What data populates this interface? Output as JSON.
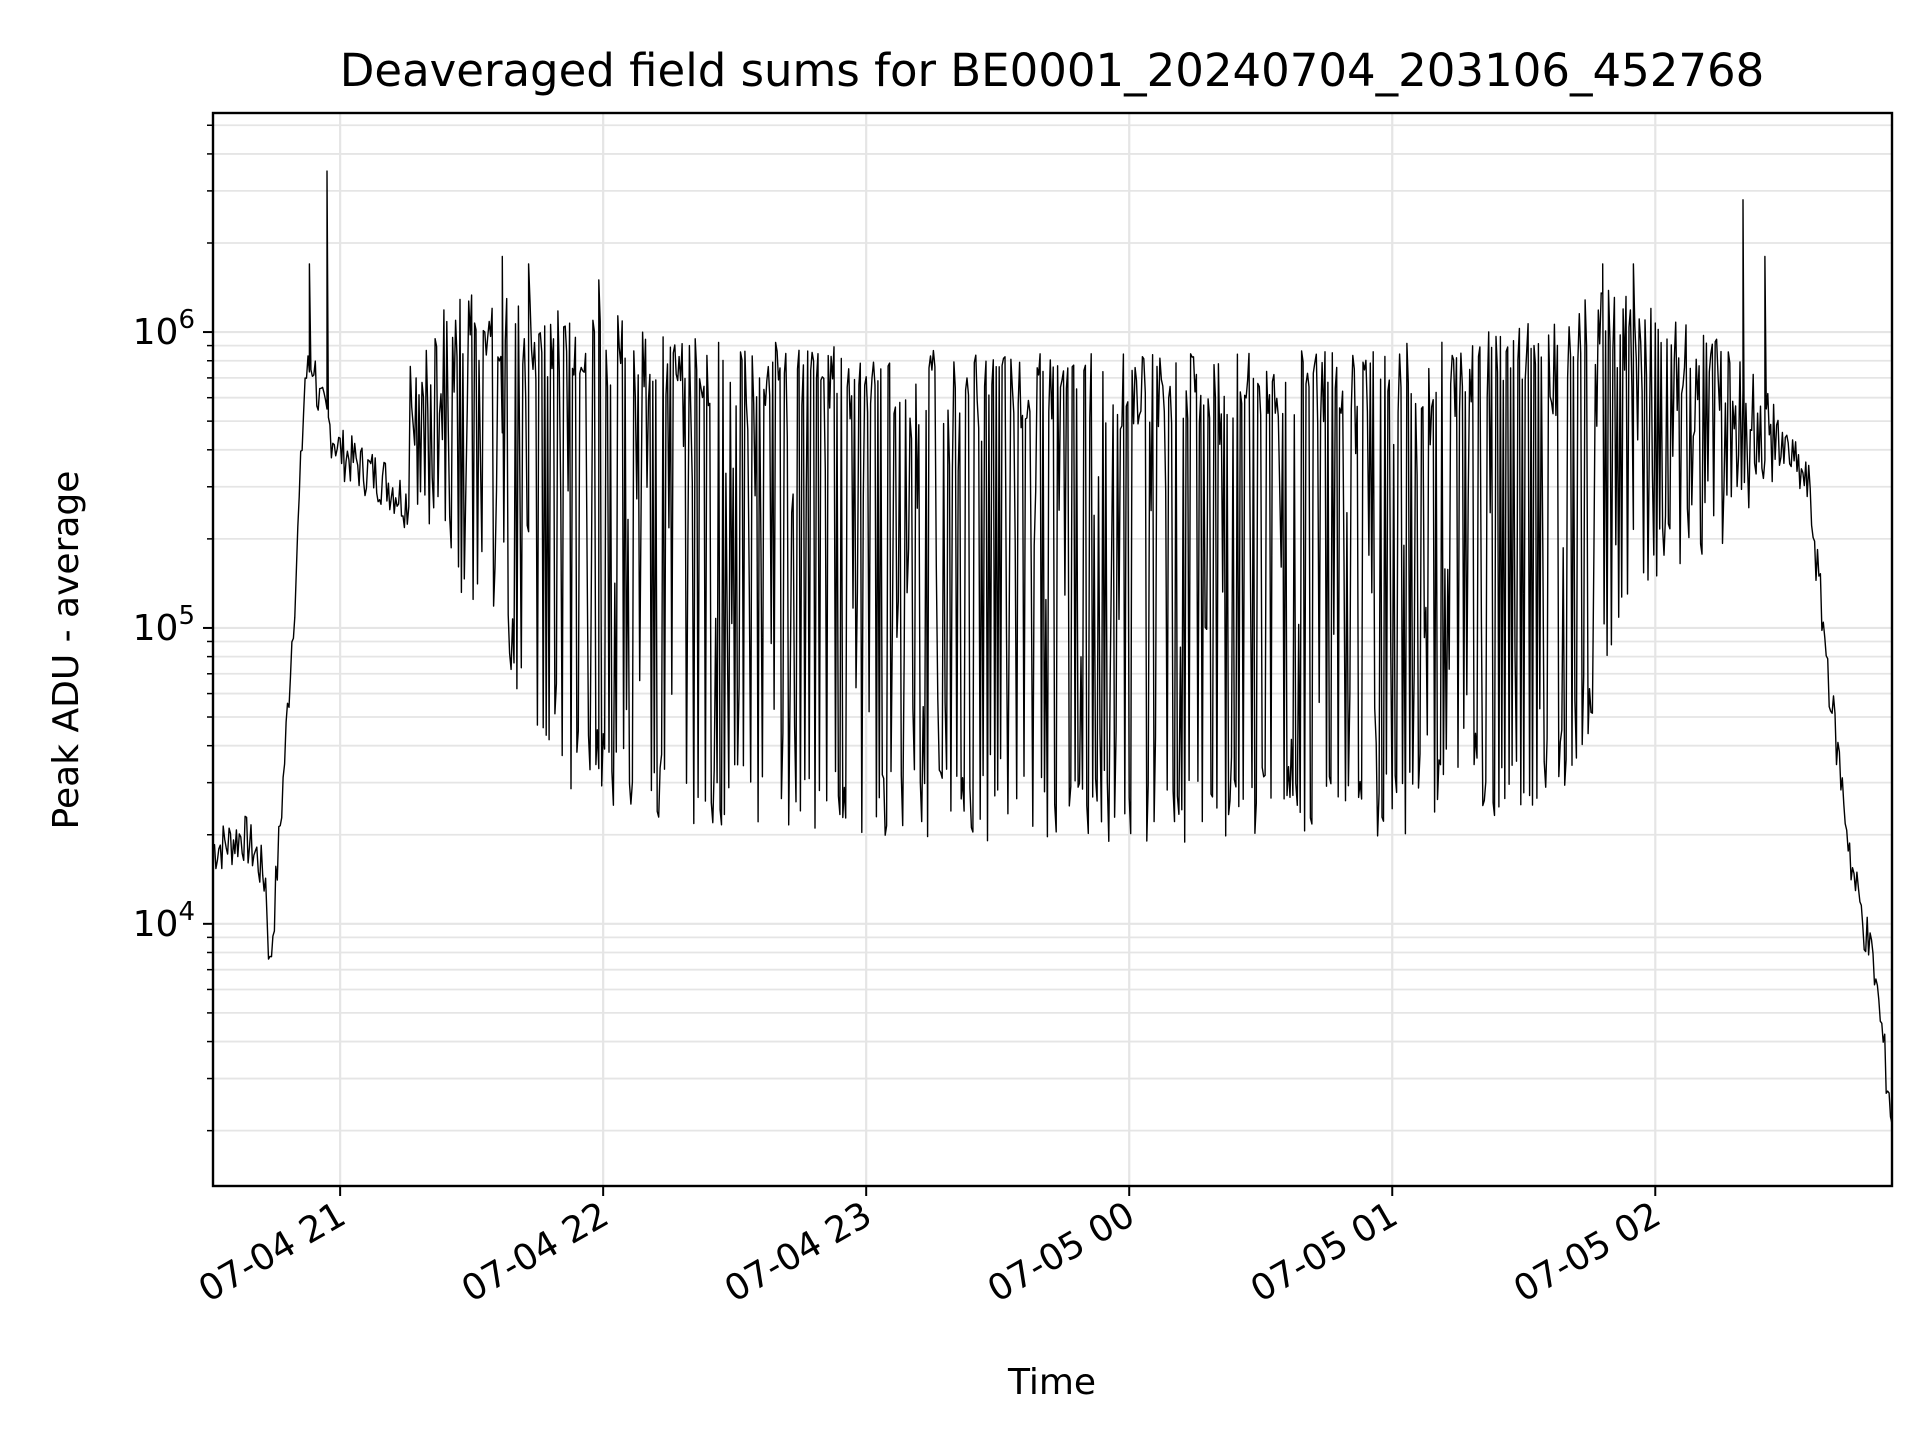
{
  "chart_data": {
    "type": "line",
    "title": "Deaveraged field sums for BE0001_20240704_203106_452768",
    "xlabel": "Time",
    "ylabel": "Peak ADU - average",
    "yscale": "log",
    "ylim": [
      1300,
      5500000
    ],
    "xlim": [
      "2024-07-04 20:31",
      "2024-07-05 02:54"
    ],
    "grid": true,
    "line_color": "#000000",
    "grid_color": "#e5e5e5",
    "x_ticks": [
      {
        "label": "07-04 21",
        "value": "2024-07-04 21:00"
      },
      {
        "label": "07-04 22",
        "value": "2024-07-04 22:00"
      },
      {
        "label": "07-04 23",
        "value": "2024-07-04 23:00"
      },
      {
        "label": "07-05 00",
        "value": "2024-07-05 00:00"
      },
      {
        "label": "07-05 01",
        "value": "2024-07-05 01:00"
      },
      {
        "label": "07-05 02",
        "value": "2024-07-05 02:00"
      }
    ],
    "y_ticks": [
      {
        "base": "10",
        "exp": "4",
        "value": 10000
      },
      {
        "base": "10",
        "exp": "5",
        "value": 100000
      },
      {
        "base": "10",
        "exp": "6",
        "value": 1000000
      }
    ],
    "series": [
      {
        "x": [
          "2024-07-04 20:31",
          "2024-07-04 20:35",
          "2024-07-04 20:38",
          "2024-07-04 20:41",
          "2024-07-04 20:43",
          "2024-07-04 20:44",
          "2024-07-04 20:47",
          "2024-07-04 20:50",
          "2024-07-04 20:52",
          "2024-07-04 20:54",
          "2024-07-04 20:55",
          "2024-07-04 20:57",
          "2024-07-04 21:00",
          "2024-07-04 21:05",
          "2024-07-04 21:10",
          "2024-07-04 21:15",
          "2024-07-04 21:20",
          "2024-07-04 21:26",
          "2024-07-04 21:30",
          "2024-07-04 21:35",
          "2024-07-04 21:40",
          "2024-07-04 21:45",
          "2024-07-04 21:50",
          "2024-07-04 21:55",
          "2024-07-04 22:00",
          "2024-07-04 22:10",
          "2024-07-04 22:20",
          "2024-07-04 22:30",
          "2024-07-04 22:40",
          "2024-07-04 22:50",
          "2024-07-04 23:00",
          "2024-07-04 23:15",
          "2024-07-04 23:30",
          "2024-07-04 23:45",
          "2024-07-05 00:00",
          "2024-07-05 00:15",
          "2024-07-05 00:30",
          "2024-07-05 00:45",
          "2024-07-05 01:00",
          "2024-07-05 01:15",
          "2024-07-05 01:30",
          "2024-07-05 01:40",
          "2024-07-05 01:50",
          "2024-07-05 02:00",
          "2024-07-05 02:10",
          "2024-07-05 02:20",
          "2024-07-05 02:30",
          "2024-07-05 02:35",
          "2024-07-05 02:40",
          "2024-07-05 02:45",
          "2024-07-05 02:50",
          "2024-07-05 02:54"
        ],
        "y": [
          18000,
          19000,
          20000,
          17000,
          14000,
          7000,
          30000,
          160000,
          700000,
          800000,
          600000,
          500000,
          400000,
          350000,
          320000,
          270000,
          250000,
          160000,
          140000,
          120000,
          70000,
          40000,
          35000,
          32000,
          30000,
          27000,
          25000,
          24000,
          24000,
          23000,
          23000,
          23000,
          22000,
          22000,
          22000,
          22000,
          22000,
          22000,
          23000,
          25000,
          28000,
          35000,
          80000,
          160000,
          200000,
          250000,
          400000,
          300000,
          60000,
          15000,
          7000,
          2200
        ],
        "spikes": [
          {
            "x": "2024-07-04 20:57",
            "y": 3500000
          },
          {
            "x": "2024-07-04 20:53",
            "y": 1700000
          },
          {
            "x": "2024-07-04 21:37",
            "y": 1800000
          },
          {
            "x": "2024-07-04 21:43",
            "y": 1700000
          },
          {
            "x": "2024-07-04 21:59",
            "y": 1500000
          },
          {
            "x": "2024-07-05 01:48",
            "y": 1700000
          },
          {
            "x": "2024-07-05 01:55",
            "y": 1700000
          },
          {
            "x": "2024-07-05 02:20",
            "y": 2800000
          },
          {
            "x": "2024-07-05 02:25",
            "y": 1800000
          }
        ],
        "upper_envelope": [
          {
            "x": "2024-07-04 21:16",
            "y": 1000000
          },
          {
            "x": "2024-07-04 21:30",
            "y": 1400000
          },
          {
            "x": "2024-07-04 21:45",
            "y": 1300000
          },
          {
            "x": "2024-07-04 22:00",
            "y": 1200000
          },
          {
            "x": "2024-07-04 22:15",
            "y": 1000000
          },
          {
            "x": "2024-07-04 22:30",
            "y": 950000
          },
          {
            "x": "2024-07-04 23:00",
            "y": 900000
          },
          {
            "x": "2024-07-04 23:30",
            "y": 850000
          },
          {
            "x": "2024-07-05 00:00",
            "y": 850000
          },
          {
            "x": "2024-07-05 00:30",
            "y": 850000
          },
          {
            "x": "2024-07-05 01:00",
            "y": 900000
          },
          {
            "x": "2024-07-05 01:20",
            "y": 1000000
          },
          {
            "x": "2024-07-05 01:35",
            "y": 1200000
          },
          {
            "x": "2024-07-05 01:50",
            "y": 1400000
          },
          {
            "x": "2024-07-05 02:05",
            "y": 1100000
          },
          {
            "x": "2024-07-05 02:20",
            "y": 900000
          },
          {
            "x": "2024-07-05 02:28",
            "y": 650000
          }
        ]
      }
    ]
  }
}
